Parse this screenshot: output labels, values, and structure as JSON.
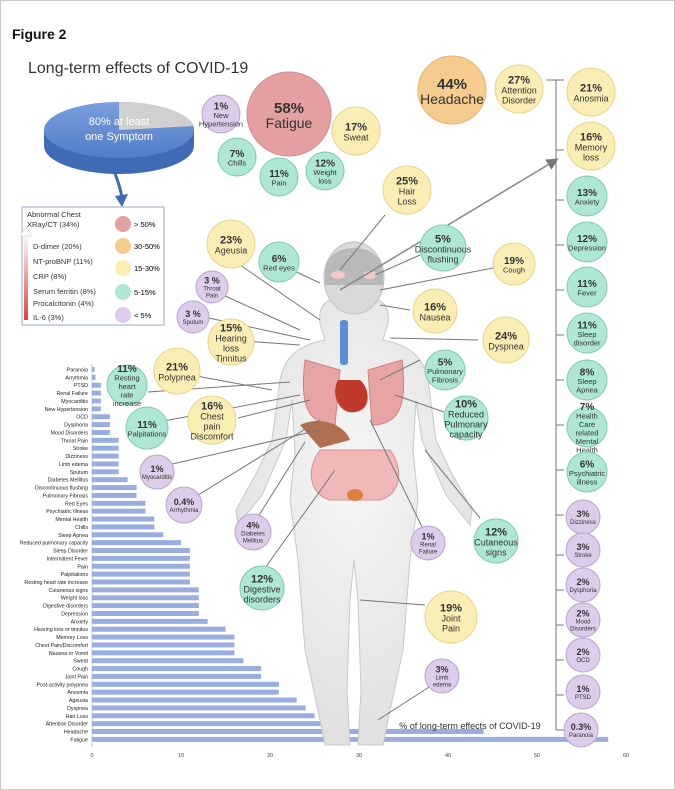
{
  "figure_label": "Figure 2",
  "title": "Long-term effects of COVID-19",
  "summary": {
    "pie_text_1": "80% at least",
    "pie_text_2": "one Symptom"
  },
  "colors": {
    "red": "#e4a0a0",
    "orange": "#f5cc8e",
    "yellow": "#fbeeb4",
    "green": "#aee8d3",
    "purple": "#ddcdea",
    "bar": "#99aede"
  },
  "legend": {
    "labs": [
      "Abnormal Chest",
      "XRay/CT (34%)",
      "D-dimer (20%)",
      "NT-proBNP (11%)",
      "CRP (8%)",
      "Serum ferritin (8%)",
      "Procalcitonin (4%)",
      "IL-6 (3%)"
    ],
    "scale": [
      "> 50%",
      "30-50%",
      "15-30%",
      "5-15%",
      "< 5%"
    ]
  },
  "bubbles": [
    {
      "pct": "58%",
      "label": "Fatigue",
      "cat": "red"
    },
    {
      "pct": "44%",
      "label": "Headache",
      "cat": "orange"
    },
    {
      "pct": "27%",
      "label": "Attention Disorder",
      "cat": "yellow"
    },
    {
      "pct": "21%",
      "label": "Anosmia",
      "cat": "yellow"
    },
    {
      "pct": "16%",
      "label": "Memory loss",
      "cat": "yellow"
    },
    {
      "pct": "13%",
      "label": "Anxiety",
      "cat": "green"
    },
    {
      "pct": "12%",
      "label": "Depression",
      "cat": "green"
    },
    {
      "pct": "11%",
      "label": "Fever",
      "cat": "green"
    },
    {
      "pct": "11%",
      "label": "Sleep disorder",
      "cat": "green"
    },
    {
      "pct": "8%",
      "label": "Sleep Apnea",
      "cat": "green"
    },
    {
      "pct": "7%",
      "label": "Health Care related Mental Health",
      "cat": "green"
    },
    {
      "pct": "6%",
      "label": "Psychiatric illness",
      "cat": "green"
    },
    {
      "pct": "3%",
      "label": "Dizziness",
      "cat": "purple"
    },
    {
      "pct": "3%",
      "label": "Stroke",
      "cat": "purple"
    },
    {
      "pct": "2%",
      "label": "Dysphoria",
      "cat": "purple"
    },
    {
      "pct": "2%",
      "label": "Mood Disorders",
      "cat": "purple"
    },
    {
      "pct": "2%",
      "label": "OCD",
      "cat": "purple"
    },
    {
      "pct": "1%",
      "label": "PTSD",
      "cat": "purple"
    },
    {
      "pct": "0.3%",
      "label": "Paranoia",
      "cat": "purple"
    },
    {
      "pct": "1%",
      "label": "New Hypertension",
      "cat": "purple"
    },
    {
      "pct": "17%",
      "label": "Sweat",
      "cat": "yellow"
    },
    {
      "pct": "7%",
      "label": "Chills",
      "cat": "green"
    },
    {
      "pct": "11%",
      "label": "Pain",
      "cat": "green"
    },
    {
      "pct": "12%",
      "label": "Weight loss",
      "cat": "green"
    },
    {
      "pct": "25%",
      "label": "Hair Loss",
      "cat": "yellow"
    },
    {
      "pct": "23%",
      "label": "Ageusia",
      "cat": "yellow"
    },
    {
      "pct": "6%",
      "label": "Red eyes",
      "cat": "green"
    },
    {
      "pct": "3 %",
      "label": "Throat Pain",
      "cat": "purple"
    },
    {
      "pct": "3 %",
      "label": "Sputum",
      "cat": "purple"
    },
    {
      "pct": "15%",
      "label": "Hearing loss Tinnitus",
      "cat": "yellow"
    },
    {
      "pct": "5%",
      "label": "Discontinuous flushing",
      "cat": "green"
    },
    {
      "pct": "19%",
      "label": "Cough",
      "cat": "yellow"
    },
    {
      "pct": "16%",
      "label": "Nausea",
      "cat": "yellow"
    },
    {
      "pct": "24%",
      "label": "Dyspnea",
      "cat": "yellow"
    },
    {
      "pct": "21%",
      "label": "Polypnea",
      "cat": "yellow"
    },
    {
      "pct": "11%",
      "label": "Resting heart rate increase",
      "cat": "green"
    },
    {
      "pct": "11%",
      "label": "Palpitations",
      "cat": "green"
    },
    {
      "pct": "16%",
      "label": "Chest pain Discomfort",
      "cat": "yellow"
    },
    {
      "pct": "5%",
      "label": "Pulmonary Fibrosis",
      "cat": "green"
    },
    {
      "pct": "10%",
      "label": "Reduced Pulmonary capacity",
      "cat": "green"
    },
    {
      "pct": "1%",
      "label": "Myocarditis",
      "cat": "purple"
    },
    {
      "pct": "0.4%",
      "label": "Arrhythmia",
      "cat": "purple"
    },
    {
      "pct": "4%",
      "label": "Diabetes Mellitus",
      "cat": "purple"
    },
    {
      "pct": "1%",
      "label": "Renal Failure",
      "cat": "purple"
    },
    {
      "pct": "12%",
      "label": "Cutaneous signs",
      "cat": "green"
    },
    {
      "pct": "12%",
      "label": "Digestive disorders",
      "cat": "green"
    },
    {
      "pct": "19%",
      "label": "Joint Pain",
      "cat": "yellow"
    },
    {
      "pct": "3%",
      "label": "Limb edema",
      "cat": "purple"
    }
  ],
  "chart_data": {
    "type": "bar",
    "orientation": "horizontal",
    "xlabel": "% of long-term effects of COVID-19",
    "xlim": [
      0,
      60
    ],
    "xticks": [
      0,
      10,
      20,
      30,
      40,
      50,
      60
    ],
    "categories": [
      "Paranoia",
      "Arrythmia",
      "PTSD",
      "Renal Failure",
      "Myocarditis",
      "New Hypertension",
      "OCD",
      "Dysphoria",
      "Mood Disorders",
      "Throat Pain",
      "Stroke",
      "Dizziness",
      "Limb edema",
      "Sputum",
      "Diabetes Mellitus",
      "Discontinuous flushing",
      "Pulmonary Fibrosis",
      "Red Eyes",
      "Psychiatric illness",
      "Mental Health",
      "Chills",
      "Sleep Apnea",
      "Reduced pulmonary capacity",
      "Sleep Disorder",
      "Intermittent Fever",
      "Pain",
      "Palpitations",
      "Resting heart rate increase",
      "Cutaneous signs",
      "Weight loss",
      "Digestive disorders",
      "Depression",
      "Anxiety",
      "Hearing loss or tinnitus",
      "Memory Loss",
      "Chest Pain/Discomfort",
      "Nausea or Vomit",
      "Sweat",
      "Cough",
      "Joint Pain",
      "Post-activity polypnea",
      "Anosmia",
      "Ageusia",
      "Dyspnea",
      "Hair Loss",
      "Attention Disorder",
      "Headache",
      "Fatigue"
    ],
    "values": [
      0.3,
      0.4,
      1,
      1,
      1,
      1,
      2,
      2,
      2,
      3,
      3,
      3,
      3,
      3,
      4,
      5,
      5,
      6,
      6,
      7,
      7,
      8,
      10,
      11,
      11,
      11,
      11,
      11,
      12,
      12,
      12,
      12,
      13,
      15,
      16,
      16,
      16,
      17,
      19,
      19,
      21,
      21,
      23,
      24,
      25,
      27,
      44,
      58
    ]
  }
}
